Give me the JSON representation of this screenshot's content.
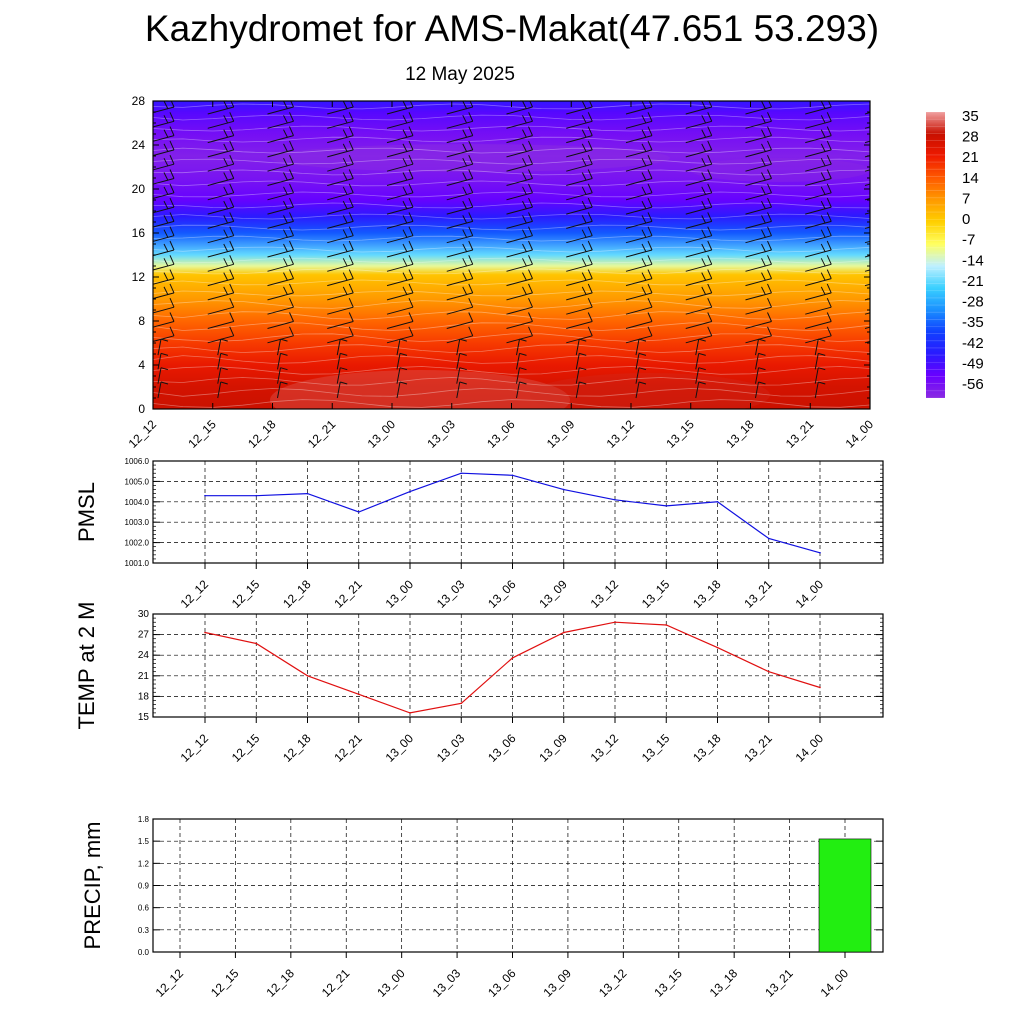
{
  "title": "Kazhydromet for AMS-Makat(47.651 53.293)",
  "date": "12 May 2025",
  "colors": {
    "pmsl_line": "#1010e0",
    "temp_line": "#e01010",
    "precip_bar": "#22ee11"
  },
  "chart_data": [
    {
      "type": "heatmap",
      "title": "",
      "x": [
        "12_12",
        "12_15",
        "12_18",
        "12_21",
        "13_00",
        "13_03",
        "13_06",
        "13_09",
        "13_12",
        "13_15",
        "13_18",
        "13_21",
        "14_00"
      ],
      "yticks": [
        "0",
        "4",
        "8",
        "12",
        "16",
        "20",
        "24",
        "28"
      ],
      "ylim": [
        0,
        28
      ],
      "colorbar": {
        "labels": [
          "35",
          "28",
          "21",
          "14",
          "7",
          "0",
          "-7",
          "-14",
          "-21",
          "-28",
          "-35",
          "-42",
          "-49",
          "-56"
        ],
        "range": [
          -60,
          38
        ],
        "palette": [
          "#8a2be2",
          "#6a00ff",
          "#2a1aff",
          "#1040ff",
          "#1a90ff",
          "#3ad0ff",
          "#bff0ff",
          "#ffff60",
          "#ffd000",
          "#ff9a00",
          "#ff5a00",
          "#ee1a00",
          "#c81000",
          "#f0a0a0"
        ]
      },
      "temperature_profile_y": [
        0,
        2,
        4,
        6,
        8,
        10,
        12.2,
        13,
        14,
        16,
        17.5,
        19,
        21,
        23,
        25,
        27,
        28
      ],
      "temperature_profile_values": [
        30,
        28,
        24,
        19,
        14,
        8,
        2,
        -10,
        -20,
        -35,
        -45,
        -52,
        -56,
        -58,
        -55,
        -50,
        -46
      ],
      "wind_barbs": "present"
    },
    {
      "type": "line",
      "ylabel": "PMSL",
      "x": [
        "12_12",
        "12_15",
        "12_18",
        "12_21",
        "13_00",
        "13_03",
        "13_06",
        "13_09",
        "13_12",
        "13_15",
        "13_18",
        "13_21",
        "14_00"
      ],
      "yticks": [
        "1001.0",
        "1002.0",
        "1003.0",
        "1004.0",
        "1005.0",
        "1006.0"
      ],
      "ylim": [
        1001,
        1006
      ],
      "grid": true,
      "series": [
        {
          "values": [
            1004.3,
            1004.3,
            1004.4,
            1003.5,
            1004.5,
            1005.4,
            1005.3,
            1004.6,
            1004.1,
            1003.8,
            1004.0,
            1002.2,
            1001.5
          ]
        }
      ]
    },
    {
      "type": "line",
      "ylabel": "TEMP at 2 M",
      "x": [
        "12_12",
        "12_15",
        "12_18",
        "12_21",
        "13_00",
        "13_03",
        "13_06",
        "13_09",
        "13_12",
        "13_15",
        "13_18",
        "13_21",
        "14_00"
      ],
      "yticks": [
        "15",
        "18",
        "21",
        "24",
        "27",
        "30"
      ],
      "ylim": [
        15,
        30
      ],
      "grid": true,
      "series": [
        {
          "values": [
            27.3,
            25.7,
            21.0,
            18.3,
            15.6,
            17.0,
            23.6,
            27.3,
            28.8,
            28.4,
            25.1,
            21.6,
            19.3
          ]
        }
      ]
    },
    {
      "type": "bar",
      "ylabel": "PRECIP, mm",
      "x": [
        "12_12",
        "12_15",
        "12_18",
        "12_21",
        "13_00",
        "13_03",
        "13_06",
        "13_09",
        "13_12",
        "13_15",
        "13_18",
        "13_21",
        "14_00"
      ],
      "yticks": [
        "0.0",
        "0.3",
        "0.6",
        "0.9",
        "1.2",
        "1.5",
        "1.8"
      ],
      "ylim": [
        0,
        1.8
      ],
      "grid": true,
      "series": [
        {
          "values": [
            0,
            0,
            0,
            0,
            0,
            0,
            0,
            0,
            0,
            0,
            0,
            0,
            1.53
          ]
        }
      ]
    }
  ]
}
